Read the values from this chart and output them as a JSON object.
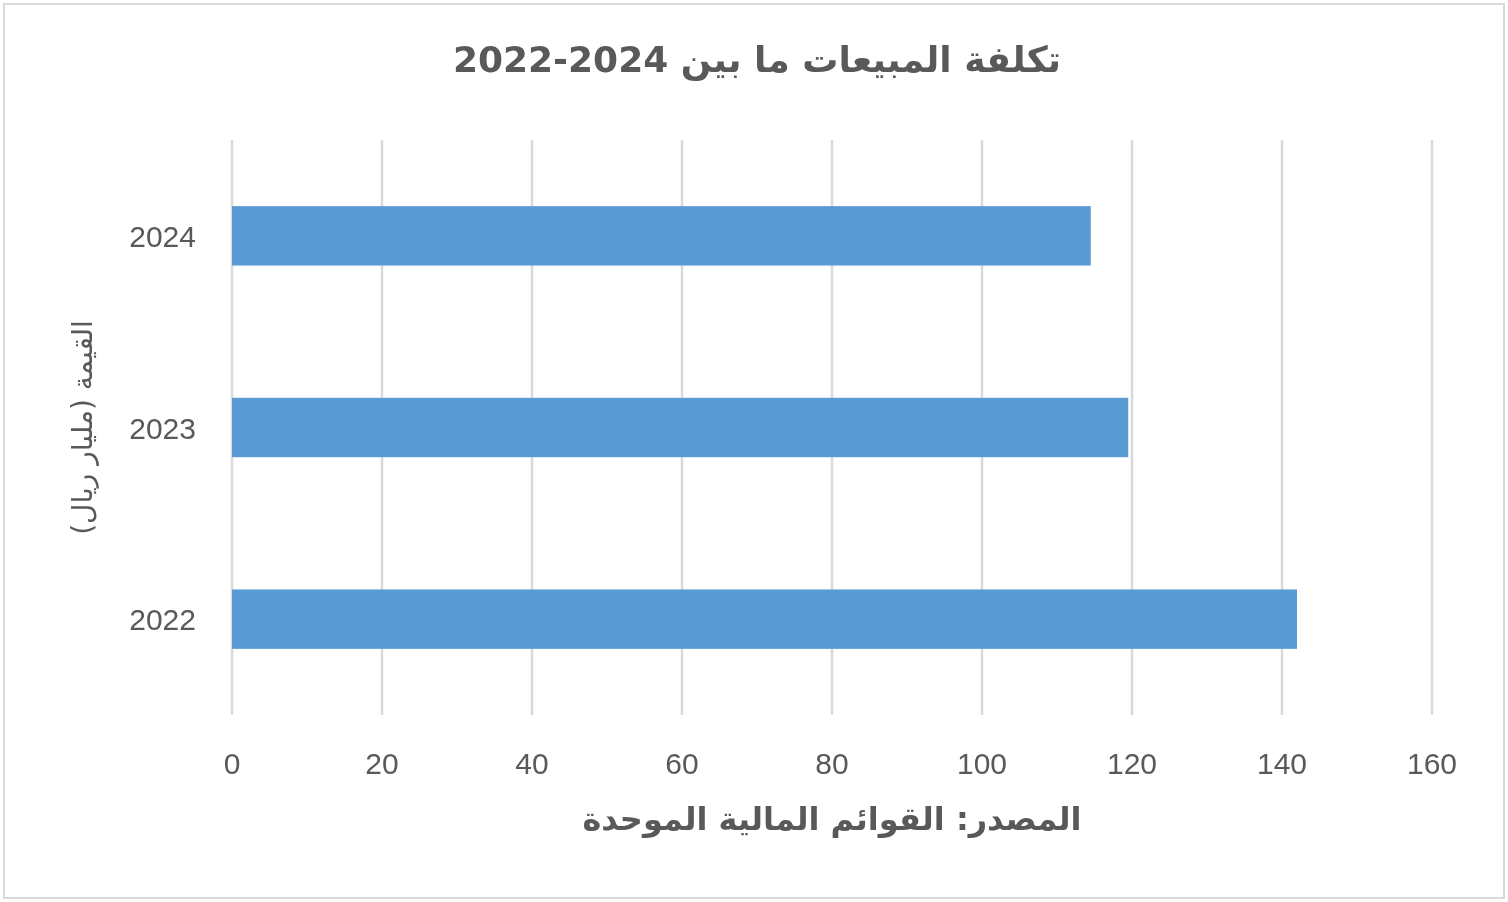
{
  "chart_data": {
    "type": "bar",
    "orientation": "horizontal",
    "title": "تكلفة المبيعات ما بين 2022-2024",
    "ylabel": "القيمة (مليار ريال)",
    "annotations": [
      "المصدر: القوائم المالية الموحدة"
    ],
    "categories": [
      "2024",
      "2023",
      "2022"
    ],
    "values": [
      114.5,
      119.5,
      142
    ],
    "color": "#5b9bd5",
    "xlim": [
      0,
      160
    ],
    "xticks": [
      0,
      20,
      40,
      60,
      80,
      100,
      120,
      140,
      160
    ],
    "grid": "x"
  }
}
